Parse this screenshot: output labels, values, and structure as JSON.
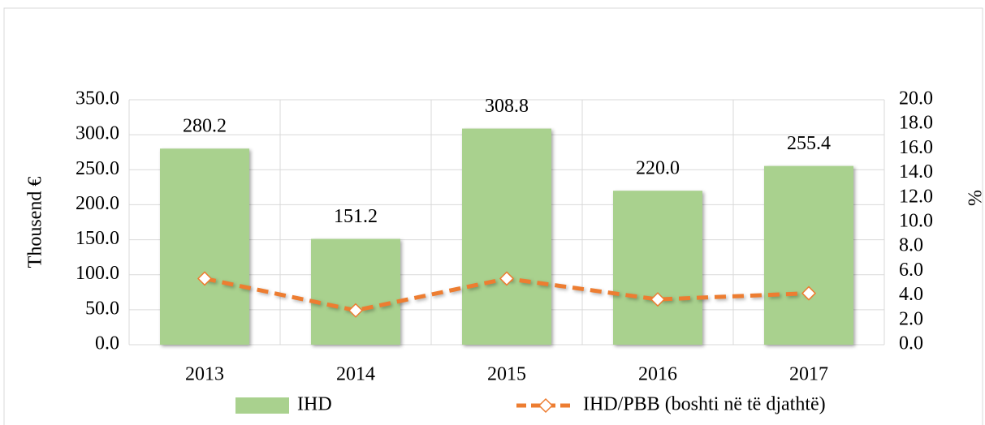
{
  "chart_data": {
    "type": "bar",
    "y_label": "Thousend €",
    "y2_label": "%",
    "categories": [
      "2013",
      "2014",
      "2015",
      "2016",
      "2017"
    ],
    "series": [
      {
        "name": "IHD",
        "type": "bar",
        "color": "#a9d18e",
        "values": [
          280.2,
          151.2,
          308.8,
          220.0,
          255.4
        ],
        "value_labels": [
          "280.2",
          "151.2",
          "308.8",
          "220.0",
          "255.4"
        ]
      },
      {
        "name": "IHD/PBB (boshti në të djathtë)",
        "type": "line",
        "color": "#ed7d31",
        "axis": "y2",
        "values": [
          5.4,
          2.8,
          5.4,
          3.7,
          4.2
        ]
      }
    ],
    "ylim": [
      0,
      350
    ],
    "yticks": [
      {
        "value": 0,
        "label": "0.0"
      },
      {
        "value": 50,
        "label": "50.0"
      },
      {
        "value": 100,
        "label": "100.0"
      },
      {
        "value": 150,
        "label": "150.0"
      },
      {
        "value": 200,
        "label": "200.0"
      },
      {
        "value": 250,
        "label": "250.0"
      },
      {
        "value": 300,
        "label": "300.0"
      },
      {
        "value": 350,
        "label": "350.0"
      }
    ],
    "y2lim": [
      0,
      20
    ],
    "y2ticks": [
      {
        "value": 0,
        "label": "0.0"
      },
      {
        "value": 2,
        "label": "2.0"
      },
      {
        "value": 4,
        "label": "4.0"
      },
      {
        "value": 6,
        "label": "6.0"
      },
      {
        "value": 8,
        "label": "8.0"
      },
      {
        "value": 10,
        "label": "10.0"
      },
      {
        "value": 12,
        "label": "12.0"
      },
      {
        "value": 14,
        "label": "14.0"
      },
      {
        "value": 16,
        "label": "16.0"
      },
      {
        "value": 18,
        "label": "18.0"
      },
      {
        "value": 20,
        "label": "20.0"
      }
    ],
    "grid": true,
    "legend": "bottom"
  }
}
